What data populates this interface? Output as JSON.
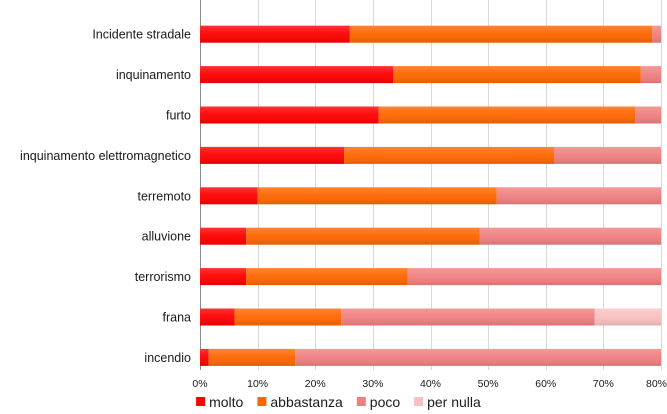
{
  "chart_data": {
    "type": "bar",
    "orientation": "horizontal",
    "stacked": true,
    "title": "",
    "xlabel": "",
    "ylabel": "",
    "xlim": [
      0,
      80
    ],
    "x_ticks": [
      "0%",
      "10%",
      "20%",
      "30%",
      "40%",
      "50%",
      "60%",
      "70%",
      "80%"
    ],
    "grid": "vertical",
    "legend_position": "bottom",
    "categories": [
      "Incidente stradale",
      "inquinamento",
      "furto",
      "inquinamento  elettromagnetico",
      "terremoto",
      "alluvione",
      "terrorismo",
      "frana",
      "incendio"
    ],
    "series": [
      {
        "name": "molto",
        "color": "#ff0000",
        "values": [
          26,
          33.5,
          31,
          25,
          10,
          8,
          8,
          6,
          1.5
        ]
      },
      {
        "name": "abbastanza",
        "color": "#ff6600",
        "values": [
          52.5,
          43,
          44.5,
          36.5,
          41.5,
          40.5,
          28,
          18.5,
          15
        ]
      },
      {
        "name": "poco",
        "color": "#f08080",
        "values": [
          1.5,
          3.5,
          4.5,
          18.5,
          28.5,
          31.5,
          44,
          44,
          63.5
        ]
      },
      {
        "name": "per nulla",
        "color": "#fac0c0",
        "values": [
          0,
          0,
          0,
          0,
          0,
          0,
          0,
          11.5,
          0
        ]
      }
    ]
  }
}
